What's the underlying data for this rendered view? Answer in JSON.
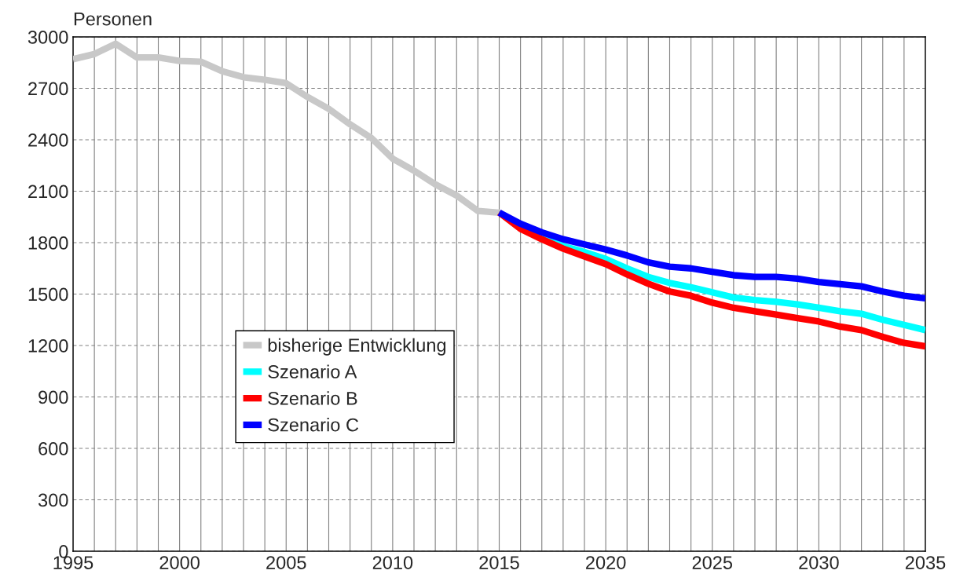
{
  "chart_data": {
    "type": "line",
    "ylabel": "Personen",
    "xlim": [
      1995,
      2035
    ],
    "ylim": [
      0,
      3000
    ],
    "yticks": [
      0,
      300,
      600,
      900,
      1200,
      1500,
      1800,
      2100,
      2400,
      2700,
      3000
    ],
    "xticks": [
      1995,
      {
        "value": 1996,
        "label": null
      },
      {
        "value": 1997,
        "label": null
      },
      {
        "value": 1998,
        "label": null
      },
      {
        "value": 1999,
        "label": null
      },
      2000,
      {
        "value": 2001,
        "label": null
      },
      {
        "value": 2002,
        "label": null
      },
      {
        "value": 2003,
        "label": null
      },
      {
        "value": 2004,
        "label": null
      },
      2005,
      {
        "value": 2006,
        "label": null
      },
      {
        "value": 2007,
        "label": null
      },
      {
        "value": 2008,
        "label": null
      },
      {
        "value": 2009,
        "label": null
      },
      2010,
      {
        "value": 2011,
        "label": null
      },
      {
        "value": 2012,
        "label": null
      },
      {
        "value": 2013,
        "label": null
      },
      {
        "value": 2014,
        "label": null
      },
      2015,
      {
        "value": 2016,
        "label": null
      },
      {
        "value": 2017,
        "label": null
      },
      {
        "value": 2018,
        "label": null
      },
      {
        "value": 2019,
        "label": null
      },
      2020,
      {
        "value": 2021,
        "label": null
      },
      {
        "value": 2022,
        "label": null
      },
      {
        "value": 2023,
        "label": null
      },
      {
        "value": 2024,
        "label": null
      },
      2025,
      {
        "value": 2026,
        "label": null
      },
      {
        "value": 2027,
        "label": null
      },
      {
        "value": 2028,
        "label": null
      },
      {
        "value": 2029,
        "label": null
      },
      2030,
      {
        "value": 2031,
        "label": null
      },
      {
        "value": 2032,
        "label": null
      },
      {
        "value": 2033,
        "label": null
      },
      {
        "value": 2034,
        "label": null
      },
      2035
    ],
    "grid": true,
    "legend": "left",
    "marker": "none",
    "line_style": "solid",
    "series": [
      {
        "name": "bisherige Entwicklung",
        "color": "#c8c8c8",
        "x": [
          1995,
          1996,
          1997,
          1998,
          1999,
          2000,
          2001,
          2002,
          2003,
          2004,
          2005,
          2006,
          2007,
          2008,
          2009,
          2010,
          2011,
          2012,
          2013,
          2014,
          2015
        ],
        "values": [
          2870,
          2900,
          2960,
          2880,
          2880,
          2860,
          2855,
          2800,
          2765,
          2750,
          2730,
          2650,
          2580,
          2490,
          2410,
          2290,
          2220,
          2140,
          2075,
          1985,
          1975
        ]
      },
      {
        "name": "Szenario A",
        "color": "#00ffff",
        "x": [
          2017,
          2018,
          2019,
          2020,
          2021,
          2022,
          2023,
          2024,
          2025,
          2026,
          2027,
          2028,
          2029,
          2030,
          2031,
          2032,
          2033,
          2034,
          2035
        ],
        "values": [
          1835,
          1780,
          1745,
          1705,
          1650,
          1600,
          1565,
          1540,
          1510,
          1480,
          1465,
          1455,
          1440,
          1420,
          1400,
          1385,
          1350,
          1320,
          1290
        ]
      },
      {
        "name": "Szenario B",
        "color": "#ff0000",
        "x": [
          2015,
          2016,
          2017,
          2018,
          2019,
          2020,
          2021,
          2022,
          2023,
          2024,
          2025,
          2026,
          2027,
          2028,
          2029,
          2030,
          2031,
          2032,
          2033,
          2034,
          2035
        ],
        "values": [
          1975,
          1880,
          1820,
          1765,
          1720,
          1675,
          1615,
          1560,
          1515,
          1490,
          1450,
          1420,
          1400,
          1380,
          1360,
          1340,
          1310,
          1290,
          1250,
          1215,
          1195
        ]
      },
      {
        "name": "Szenario C",
        "color": "#0000ff",
        "x": [
          2015,
          2016,
          2017,
          2018,
          2019,
          2020,
          2021,
          2022,
          2023,
          2024,
          2025,
          2026,
          2027,
          2028,
          2029,
          2030,
          2031,
          2032,
          2033,
          2034,
          2035
        ],
        "values": [
          1975,
          1910,
          1860,
          1820,
          1790,
          1760,
          1725,
          1685,
          1660,
          1650,
          1630,
          1610,
          1600,
          1600,
          1590,
          1570,
          1558,
          1545,
          1515,
          1490,
          1475
        ]
      }
    ]
  }
}
